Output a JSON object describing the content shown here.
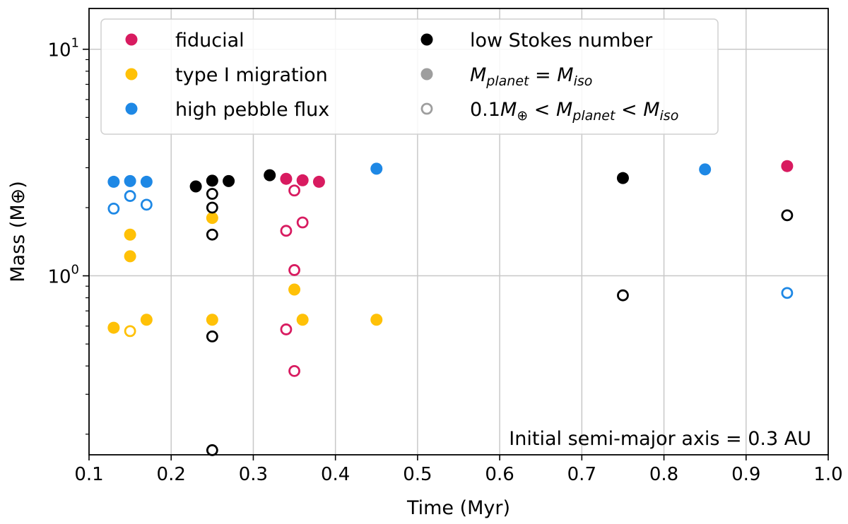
{
  "chart_data": {
    "type": "scatter",
    "title": "",
    "xlabel": "Time (Myr)",
    "ylabel": "Mass (M⊕)",
    "xlim": [
      0.1,
      1.0
    ],
    "ylim_log10": [
      -0.79,
      1.18
    ],
    "yscale": "log",
    "grid": true,
    "x_ticks": [
      {
        "value": 0.1,
        "label": "0.1"
      },
      {
        "value": 0.2,
        "label": "0.2"
      },
      {
        "value": 0.3,
        "label": "0.3"
      },
      {
        "value": 0.4,
        "label": "0.4"
      },
      {
        "value": 0.5,
        "label": "0.5"
      },
      {
        "value": 0.6,
        "label": "0.6"
      },
      {
        "value": 0.7,
        "label": "0.7"
      },
      {
        "value": 0.8,
        "label": "0.8"
      },
      {
        "value": 0.9,
        "label": "0.9"
      },
      {
        "value": 1.0,
        "label": "1.0"
      }
    ],
    "y_major_ticks": [
      {
        "value": 1,
        "base": "10",
        "exp": "0"
      },
      {
        "value": 10,
        "base": "10",
        "exp": "1"
      }
    ],
    "y_minor_ticks": [
      0.2,
      0.3,
      0.4,
      0.5,
      0.6,
      0.7,
      0.8,
      0.9,
      2,
      3,
      4,
      5,
      6,
      7,
      8,
      9
    ],
    "colors": {
      "fiducial": "#d81b60",
      "typeI": "#ffc107",
      "high": "#1e88e5",
      "low": "#000000",
      "legend_gray": "#9e9e9e"
    },
    "legend_position": "top-left",
    "legend": [
      {
        "label": "fiducial",
        "color_key": "fiducial",
        "filled": true
      },
      {
        "label": "type I migration",
        "color_key": "typeI",
        "filled": true
      },
      {
        "label": "high pebble flux",
        "color_key": "high",
        "filled": true
      },
      {
        "label": "low Stokes number",
        "color_key": "low",
        "filled": true
      },
      {
        "label": "M_planet = M_iso",
        "color_key": "legend_gray",
        "filled": true
      },
      {
        "label": "0.1M⊕ < M_planet < M_iso",
        "color_key": "legend_gray",
        "filled": false
      }
    ],
    "series": [
      {
        "name": "fiducial",
        "color_key": "fiducial",
        "points": [
          {
            "x": 0.34,
            "y": 2.68,
            "filled": true
          },
          {
            "x": 0.36,
            "y": 2.64,
            "filled": true
          },
          {
            "x": 0.38,
            "y": 2.6,
            "filled": true
          },
          {
            "x": 0.95,
            "y": 3.05,
            "filled": true
          },
          {
            "x": 0.35,
            "y": 2.38,
            "filled": false
          },
          {
            "x": 0.36,
            "y": 1.72,
            "filled": false
          },
          {
            "x": 0.34,
            "y": 1.58,
            "filled": false
          },
          {
            "x": 0.35,
            "y": 1.06,
            "filled": false
          },
          {
            "x": 0.34,
            "y": 0.58,
            "filled": false
          },
          {
            "x": 0.35,
            "y": 0.38,
            "filled": false
          }
        ]
      },
      {
        "name": "type I migration",
        "color_key": "typeI",
        "points": [
          {
            "x": 0.15,
            "y": 1.52,
            "filled": true
          },
          {
            "x": 0.15,
            "y": 1.22,
            "filled": true
          },
          {
            "x": 0.13,
            "y": 0.59,
            "filled": true
          },
          {
            "x": 0.17,
            "y": 0.64,
            "filled": true
          },
          {
            "x": 0.15,
            "y": 0.57,
            "filled": false
          },
          {
            "x": 0.25,
            "y": 1.8,
            "filled": true
          },
          {
            "x": 0.25,
            "y": 0.64,
            "filled": true
          },
          {
            "x": 0.35,
            "y": 0.87,
            "filled": true
          },
          {
            "x": 0.36,
            "y": 0.64,
            "filled": true
          },
          {
            "x": 0.45,
            "y": 0.64,
            "filled": true
          }
        ]
      },
      {
        "name": "high pebble flux",
        "color_key": "high",
        "points": [
          {
            "x": 0.13,
            "y": 2.6,
            "filled": true
          },
          {
            "x": 0.15,
            "y": 2.62,
            "filled": true
          },
          {
            "x": 0.17,
            "y": 2.6,
            "filled": true
          },
          {
            "x": 0.45,
            "y": 2.97,
            "filled": true
          },
          {
            "x": 0.85,
            "y": 2.95,
            "filled": true
          },
          {
            "x": 0.13,
            "y": 1.98,
            "filled": false
          },
          {
            "x": 0.15,
            "y": 2.25,
            "filled": false
          },
          {
            "x": 0.17,
            "y": 2.06,
            "filled": false
          },
          {
            "x": 0.95,
            "y": 0.84,
            "filled": false
          }
        ]
      },
      {
        "name": "low Stokes number",
        "color_key": "low",
        "points": [
          {
            "x": 0.23,
            "y": 2.48,
            "filled": true
          },
          {
            "x": 0.25,
            "y": 2.63,
            "filled": true
          },
          {
            "x": 0.27,
            "y": 2.62,
            "filled": true
          },
          {
            "x": 0.32,
            "y": 2.78,
            "filled": true
          },
          {
            "x": 0.75,
            "y": 2.7,
            "filled": true
          },
          {
            "x": 0.25,
            "y": 2.3,
            "filled": false
          },
          {
            "x": 0.25,
            "y": 2.0,
            "filled": false
          },
          {
            "x": 0.25,
            "y": 1.52,
            "filled": false
          },
          {
            "x": 0.25,
            "y": 0.54,
            "filled": false
          },
          {
            "x": 0.25,
            "y": 0.17,
            "filled": false
          },
          {
            "x": 0.75,
            "y": 0.82,
            "filled": false
          },
          {
            "x": 0.95,
            "y": 1.85,
            "filled": false
          }
        ]
      }
    ],
    "annotation": "Initial semi-major axis = 0.3 AU"
  }
}
